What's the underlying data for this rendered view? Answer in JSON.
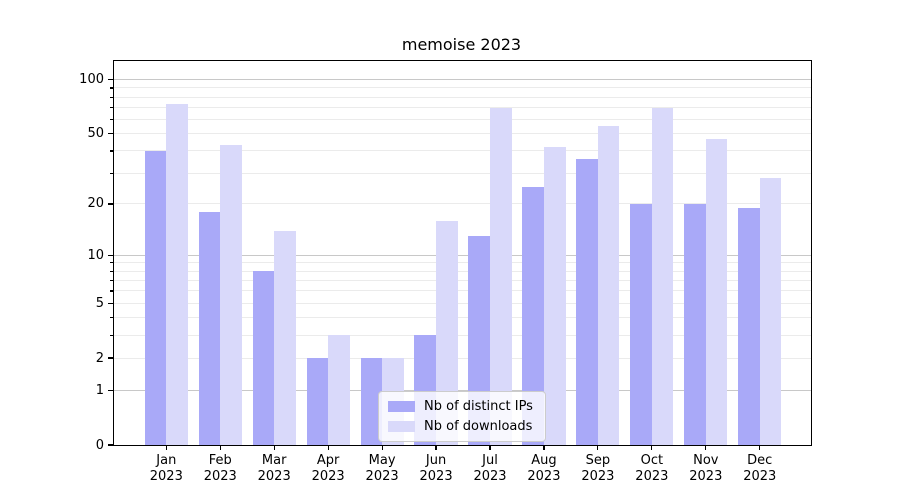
{
  "title": "memoise 2023",
  "legend": {
    "items": [
      {
        "label": "Nb of distinct IPs",
        "color": "#a9a9f8"
      },
      {
        "label": "Nb of downloads",
        "color": "#d9d9fa"
      }
    ]
  },
  "chart_data": {
    "type": "bar",
    "title": "memoise 2023",
    "categories": [
      "Jan\n2023",
      "Feb\n2023",
      "Mar\n2023",
      "Apr\n2023",
      "May\n2023",
      "Jun\n2023",
      "Jul\n2023",
      "Aug\n2023",
      "Sep\n2023",
      "Oct\n2023",
      "Nov\n2023",
      "Dec\n2023"
    ],
    "series": [
      {
        "name": "Nb of distinct IPs",
        "color": "#a9a9f8",
        "values": [
          40,
          18,
          8,
          2,
          2,
          3,
          13,
          25,
          36,
          20,
          20,
          19
        ]
      },
      {
        "name": "Nb of downloads",
        "color": "#d9d9fa",
        "values": [
          73,
          43,
          14,
          3,
          2,
          16,
          70,
          42,
          55,
          70,
          47,
          28
        ]
      }
    ],
    "xlabel": "",
    "ylabel": "",
    "yscale": "log1p",
    "ylim": [
      0,
      127
    ],
    "yticks_labeled": [
      0,
      1,
      2,
      5,
      10,
      20,
      50,
      100
    ],
    "gridlines_major": [
      1,
      10,
      100
    ],
    "gridlines_minor": [
      2,
      3,
      4,
      5,
      6,
      7,
      8,
      9,
      20,
      30,
      40,
      50,
      60,
      70,
      80,
      90
    ],
    "yticks_minor": [
      3,
      4,
      6,
      7,
      8,
      9,
      30,
      40,
      60,
      70,
      80,
      90
    ],
    "grid": "both",
    "legend_position": "lower center"
  }
}
